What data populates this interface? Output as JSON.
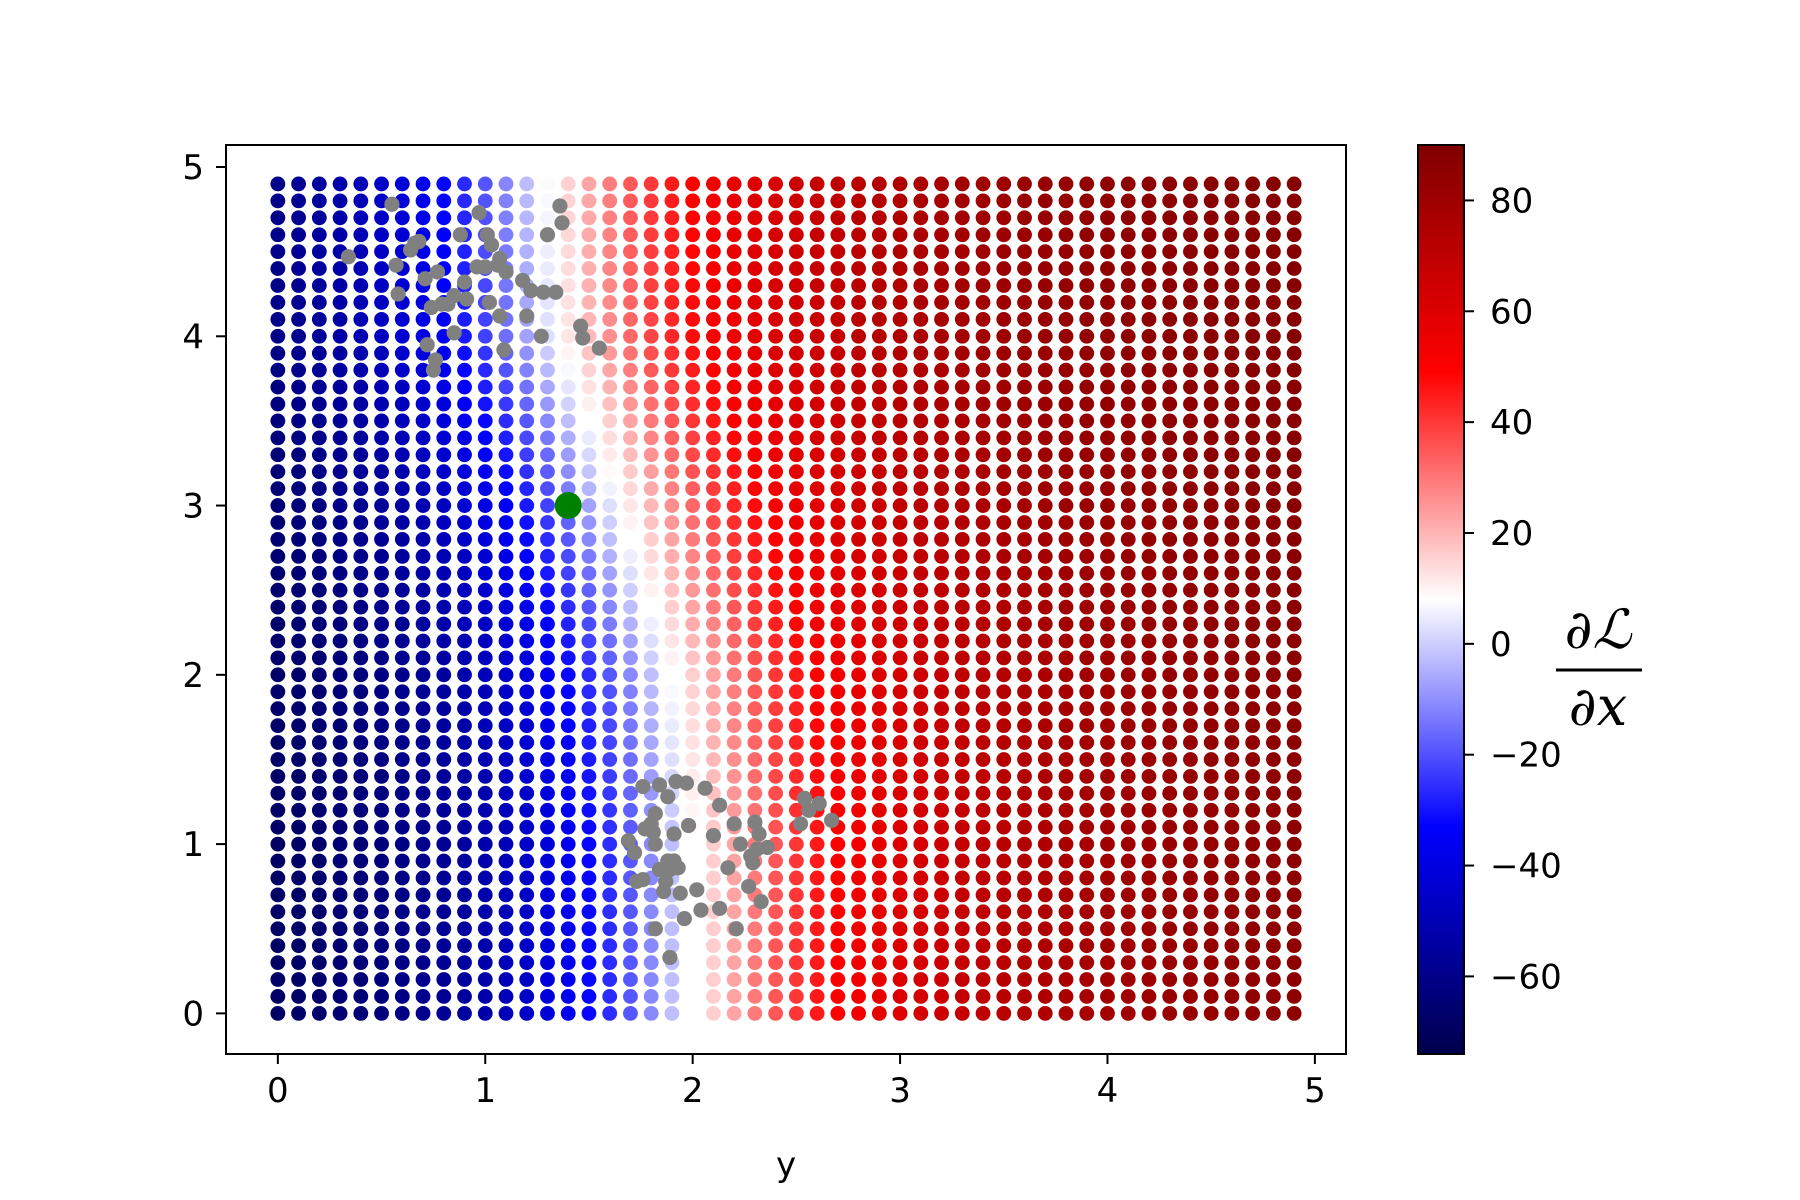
{
  "chart_data": {
    "type": "scatter",
    "xlabel": "y",
    "ylabel": "",
    "xlim": [
      -0.25,
      5.15
    ],
    "ylim": [
      -0.24,
      5.13
    ],
    "xticks": [
      0,
      1,
      2,
      3,
      4,
      5
    ],
    "yticks": [
      0,
      1,
      2,
      3,
      4,
      5
    ],
    "grid": false,
    "colormap": "seismic",
    "colorbar": {
      "label_numerator": "∂ℒ",
      "label_denominator": "∂x",
      "range": [
        -74,
        90
      ],
      "ticks": [
        -60,
        -40,
        -20,
        0,
        20,
        40,
        60,
        80
      ],
      "tick_labels": [
        "−60",
        "−40",
        "−20",
        "0",
        "20",
        "40",
        "60",
        "80"
      ],
      "neutral_value": 8
    },
    "gradient_field": {
      "description_free": true,
      "x_start": 0,
      "x_step": 0.1,
      "x_count": 50,
      "y_start": 0,
      "y_step": 0.1,
      "y_count": 50,
      "zero_boundary": [
        [
          0.0,
          2.0
        ],
        [
          1.0,
          2.0
        ],
        [
          2.0,
          1.9
        ],
        [
          3.0,
          1.65
        ],
        [
          4.0,
          1.35
        ],
        [
          5.0,
          1.3
        ]
      ]
    },
    "gray_points": [
      [
        0.34,
        4.47
      ],
      [
        0.55,
        4.78
      ],
      [
        0.57,
        4.42
      ],
      [
        0.58,
        4.25
      ],
      [
        0.64,
        4.51
      ],
      [
        0.66,
        4.55
      ],
      [
        0.68,
        4.56
      ],
      [
        0.71,
        4.34
      ],
      [
        0.72,
        3.95
      ],
      [
        0.74,
        4.17
      ],
      [
        0.75,
        3.8
      ],
      [
        0.76,
        3.86
      ],
      [
        0.77,
        4.38
      ],
      [
        0.79,
        4.19
      ],
      [
        0.82,
        4.19
      ],
      [
        0.85,
        4.02
      ],
      [
        0.85,
        4.24
      ],
      [
        0.88,
        4.6
      ],
      [
        0.9,
        4.32
      ],
      [
        0.91,
        4.22
      ],
      [
        0.96,
        4.41
      ],
      [
        0.97,
        4.73
      ],
      [
        1.0,
        4.41
      ],
      [
        1.01,
        4.6
      ],
      [
        1.02,
        4.2
      ],
      [
        1.03,
        4.54
      ],
      [
        1.06,
        4.42
      ],
      [
        1.07,
        4.46
      ],
      [
        1.07,
        4.12
      ],
      [
        1.09,
        3.92
      ],
      [
        1.1,
        4.38
      ],
      [
        1.18,
        4.33
      ],
      [
        1.2,
        4.12
      ],
      [
        1.22,
        4.27
      ],
      [
        1.27,
        4.0
      ],
      [
        1.28,
        4.26
      ],
      [
        1.3,
        4.6
      ],
      [
        1.34,
        4.26
      ],
      [
        1.36,
        4.77
      ],
      [
        1.37,
        4.67
      ],
      [
        1.46,
        4.06
      ],
      [
        1.47,
        3.99
      ],
      [
        1.55,
        3.93
      ],
      [
        1.69,
        1.02
      ],
      [
        1.72,
        0.95
      ],
      [
        1.73,
        0.78
      ],
      [
        1.76,
        0.79
      ],
      [
        1.76,
        1.34
      ],
      [
        1.77,
        1.09
      ],
      [
        1.8,
        1.12
      ],
      [
        1.81,
        1.07
      ],
      [
        1.82,
        0.5
      ],
      [
        1.82,
        1.0
      ],
      [
        1.82,
        1.18
      ],
      [
        1.84,
        0.85
      ],
      [
        1.84,
        1.35
      ],
      [
        1.86,
        0.72
      ],
      [
        1.87,
        0.78
      ],
      [
        1.88,
        1.28
      ],
      [
        1.88,
        0.9
      ],
      [
        1.89,
        0.85
      ],
      [
        1.89,
        0.33
      ],
      [
        1.91,
        1.06
      ],
      [
        1.91,
        0.9
      ],
      [
        1.92,
        1.37
      ],
      [
        1.93,
        0.86
      ],
      [
        1.94,
        0.71
      ],
      [
        1.96,
        0.56
      ],
      [
        1.97,
        1.36
      ],
      [
        1.98,
        1.11
      ],
      [
        2.02,
        0.73
      ],
      [
        2.04,
        0.61
      ],
      [
        2.06,
        1.33
      ],
      [
        2.1,
        1.05
      ],
      [
        2.13,
        1.23
      ],
      [
        2.13,
        0.62
      ],
      [
        2.17,
        0.86
      ],
      [
        2.2,
        1.12
      ],
      [
        2.21,
        0.5
      ],
      [
        2.23,
        1.0
      ],
      [
        2.27,
        0.75
      ],
      [
        2.28,
        0.93
      ],
      [
        2.29,
        0.89
      ],
      [
        2.3,
        1.13
      ],
      [
        2.31,
        0.97
      ],
      [
        2.32,
        1.06
      ],
      [
        2.33,
        0.66
      ],
      [
        2.36,
        0.98
      ],
      [
        2.52,
        1.12
      ],
      [
        2.54,
        1.27
      ],
      [
        2.56,
        1.2
      ],
      [
        2.61,
        1.24
      ],
      [
        2.67,
        1.14
      ]
    ],
    "highlight_point": [
      1.4,
      3.0
    ],
    "colors": {
      "gray_points": "#808080",
      "highlight_point": "#008000"
    }
  }
}
